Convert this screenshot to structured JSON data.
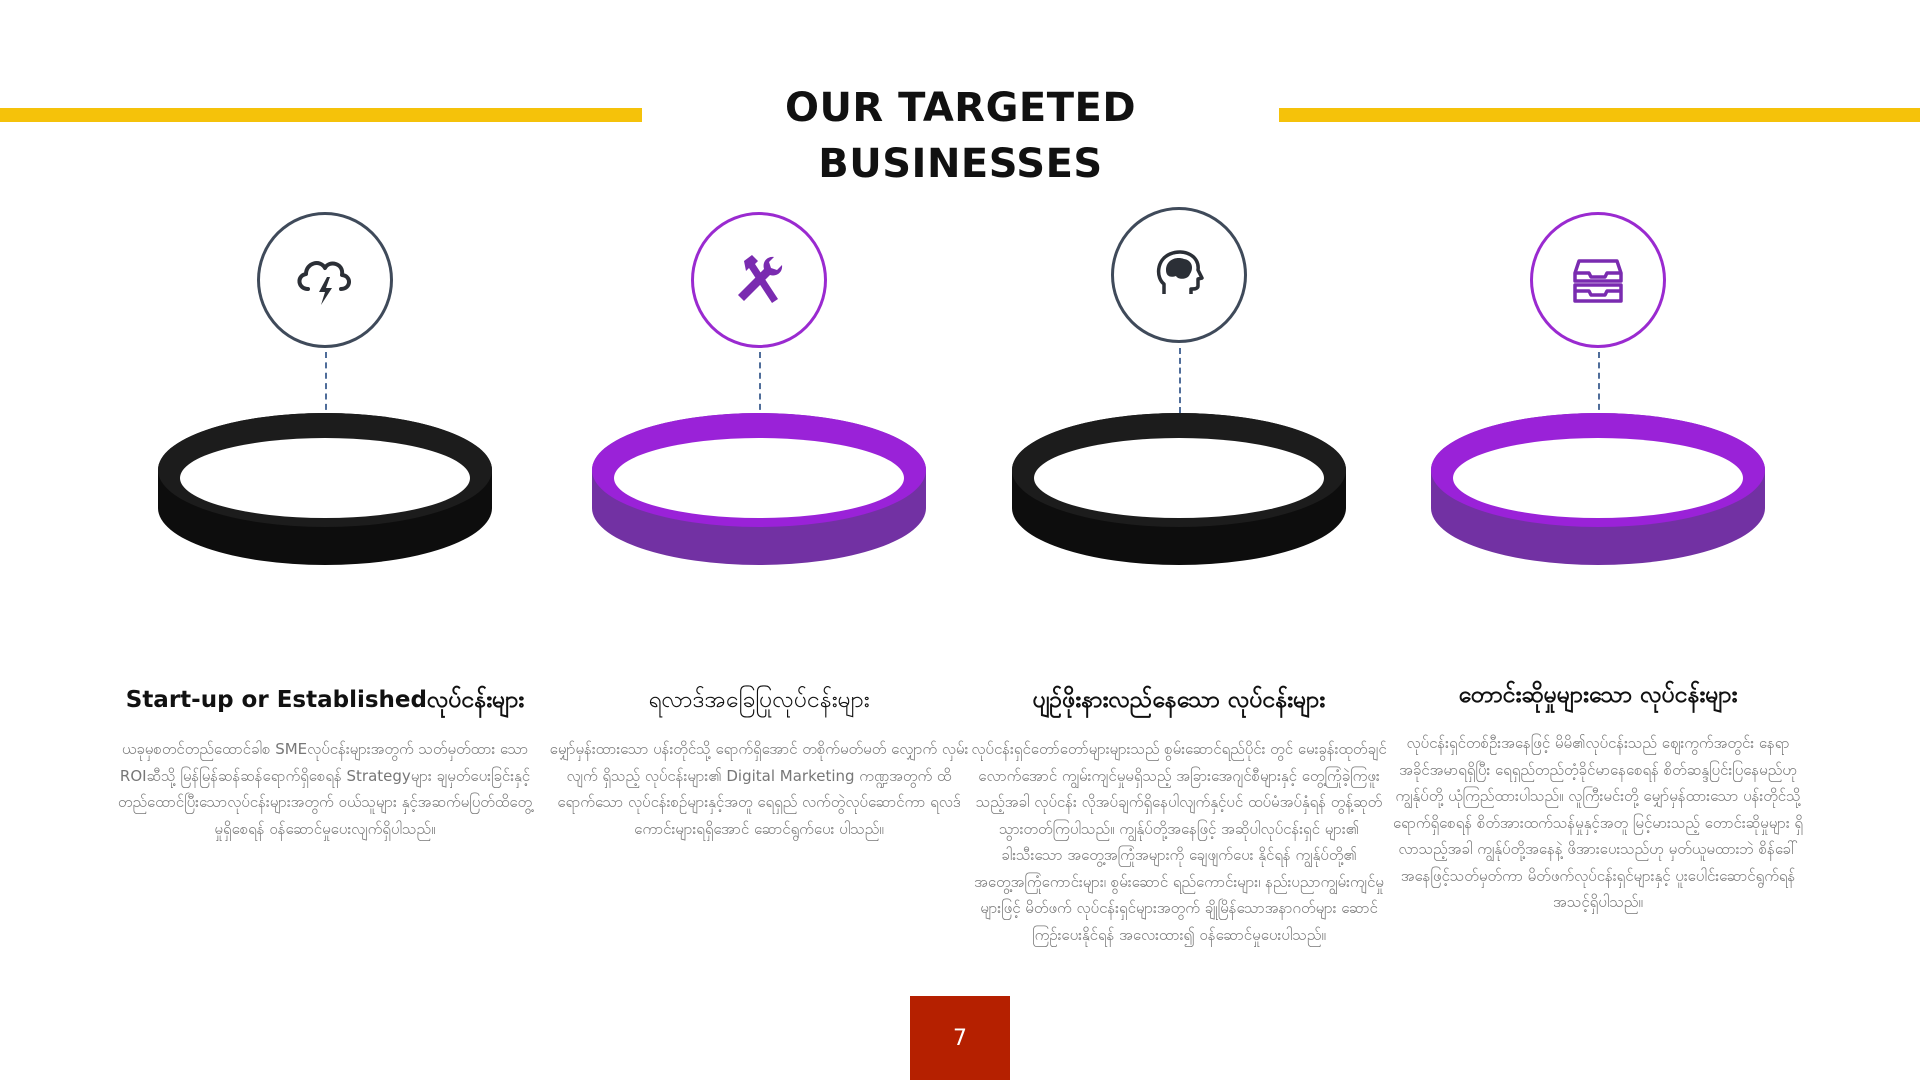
{
  "title": "OUR TARGETED BUSINESSES",
  "colors": {
    "accent_yellow": "#f5c20a",
    "purple": "#8b24c8",
    "black": "#111111",
    "circle_border_dark": "#3f4a5a",
    "circle_border_purple": "#9a2ad0",
    "page_badge": "#b52000"
  },
  "items": [
    {
      "icon": "cloud-lightning-icon",
      "ring_color": "black",
      "heading": "Start-up or Establishedလုပ်ငန်းများ",
      "body": "ယခုမှစတင်တည်ထောင်ခါစ SMEလုပ်ငန်းများအတွက် သတ်မှတ်ထား သော ROIဆီသို့ မြန်မြန်ဆန်ဆန်ရောက်ရှိစေရန် Strategyများ ချမှတ်ပေးခြင်းနှင့် တည်ထောင်ပြီးသောလုပ်ငန်းများအတွက် ဝယ်သူများ နှင့်အဆက်မပြတ်ထိတွေ့မှုရှိစေရန် ဝန်ဆောင်မှုပေးလျက်ရှိပါသည်။"
    },
    {
      "icon": "hammer-wrench-icon",
      "ring_color": "purple",
      "heading": "ရလာဒ်အခြေပြုလုပ်ငန်းများ",
      "body": "မျှော်မှန်းထားသော ပန်းတိုင်သို့ ရောက်ရှိအောင် တစိုက်မတ်မတ် လျှောက် လှမ်းလျက် ရှိသည့် လုပ်ငန်းများ၏ Digital Marketing ကဏ္ဍအတွက် ထိရောက်သော လုပ်ငန်းစဉ်များနှင့်အတူ ရေရှည် လက်တွဲလုပ်ဆောင်ကာ ရလဒ်ကောင်းများရရှိအောင် ဆောင်ရွက်ပေး ပါသည်။"
    },
    {
      "icon": "human-head-brain-icon",
      "ring_color": "black",
      "heading": "ပျဉ်ဖိုးနားလည်နေသော လုပ်ငန်းများ",
      "body": "လုပ်ငန်းရှင်တော်တော်များများသည် စွမ်းဆောင်ရည်ပိုင်း တွင် မေးခွန်းထုတ်ချင်လောက်အောင် ကျွမ်းကျင်မှုမရှိသည့် အခြားအေဂျင်စီများနှင့် တွေ့ကြုံခဲ့ကြဖူးသည့်အခါ လုပ်ငန်း လိုအပ်ချက်ရှိနေပါလျက်နှင့်ပင် ထပ်မံအပ်နှံရန် တွန့်ဆုတ် သွားတတ်ကြပါသည်။ ကျွန်ုပ်တို့အနေဖြင့် အဆိုပါလုပ်ငန်းရှင် များ၏ ခါးသီးသော အတွေ့အကြုံအများကို ချေဖျက်ပေး နိုင်ရန် ကျွန်ုပ်တို့၏ အတွေ့အကြုံကောင်းများ၊ စွမ်းဆောင် ရည်ကောင်းများ၊ နည်းပညာကျွမ်းကျင်မှုများဖြင့် မိတ်ဖက် လုပ်ငန်းရှင်များအတွက် ချိုမြိန်သောအနာဂတ်များ ဆောင် ကြဉ်းပေးနိုင်ရန် အလေးထား၍ ဝန်ဆောင်မှုပေးပါသည်။"
    },
    {
      "icon": "inbox-tray-icon",
      "ring_color": "purple",
      "heading": "တောင်းဆိုမှုများသော လုပ်ငန်းများ",
      "body": "လုပ်ငန်းရှင်တစ်ဦးအနေဖြင့် မိမိ၏လုပ်ငန်းသည် ဈေးကွက်အတွင်း နေရာအခိုင်အမာရရှိပြီး ရေရှည်တည်တံ့ခိုင်မာနေစေရန် စိတ်ဆန္ဒပြင်းပြနေမည်ဟု ကျွန်ုပ်တို့ ယုံကြည်ထားပါသည်။ လူကြီးမင်းတို့ မျှော်မှန်ထားသော ပန်းတိုင်သို့ရောက်ရှိစေရန် စိတ်အားထက်သန်မှုနှင့်အတူ မြင့်မားသည့် တောင်းဆိုမှုများ ရှိလာသည့်အခါ ကျွန်ုပ်တို့အနေနဲ့ ဖိအားပေးသည်ဟု မှတ်ယူမထားဘဲ စိန်ခေါ်အနေဖြင့်သတ်မှတ်ကာ မိတ်ဖက်လုပ်ငန်းရှင်များနှင့် ပူးပေါင်းဆောင်ရွက်ရန် အသင့်ရှိပါသည်။"
    }
  ],
  "page_number": "7"
}
